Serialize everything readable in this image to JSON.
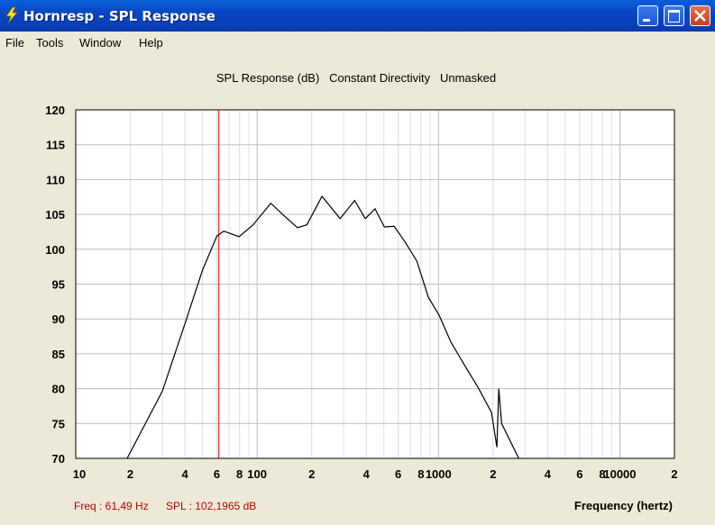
{
  "window": {
    "title": "Hornresp - SPL Response"
  },
  "menu": [
    "File",
    "Tools",
    "Window",
    "Help"
  ],
  "chart_data": {
    "type": "line",
    "title": "SPL Response (dB)   Constant Directivity   Unmasked",
    "xlabel": "Frequency (hertz)",
    "x": [
      19.2,
      30,
      40,
      50,
      60,
      65.5,
      79.5,
      95,
      119,
      141,
      167,
      188,
      228,
      287,
      345,
      395,
      447,
      503,
      570,
      660,
      760,
      880,
      1010,
      1170,
      1390,
      1660,
      1960,
      2100,
      2150,
      2230,
      2770
    ],
    "series": [
      {
        "color": "#000000",
        "values": [
          70,
          79.6,
          89.3,
          97,
          101.9,
          102.6,
          101.8,
          103.5,
          106.6,
          104.8,
          103.1,
          103.5,
          107.6,
          104.4,
          107,
          104.4,
          105.8,
          103.2,
          103.3,
          100.9,
          98.3,
          93.1,
          90.5,
          86.7,
          83.4,
          80.1,
          76.6,
          71.6,
          80,
          75,
          70
        ]
      }
    ],
    "xlim": [
      10,
      20000
    ],
    "ylim": [
      70,
      120
    ],
    "xticks": [
      10,
      {
        "value": 20,
        "label": "2"
      },
      {
        "value": 40,
        "label": "4"
      },
      {
        "value": 60,
        "label": "6"
      },
      {
        "value": 80,
        "label": "8"
      },
      100,
      {
        "value": 200,
        "label": "2"
      },
      {
        "value": 400,
        "label": "4"
      },
      {
        "value": 600,
        "label": "6"
      },
      {
        "value": 800,
        "label": "8"
      },
      1000,
      {
        "value": 2000,
        "label": "2"
      },
      {
        "value": 4000,
        "label": "4"
      },
      {
        "value": 6000,
        "label": "6"
      },
      {
        "value": 8000,
        "label": "8"
      },
      10000,
      {
        "value": 20000,
        "label": "2"
      }
    ],
    "yticks": [
      70,
      75,
      80,
      85,
      90,
      95,
      100,
      105,
      110,
      115,
      120
    ],
    "log_x": true,
    "grid": true,
    "cursor_x": 61.49,
    "cursor_color": "#ff0000",
    "status": [
      "Freq : 61,49 Hz",
      "SPL : 102,1965 dB"
    ]
  }
}
